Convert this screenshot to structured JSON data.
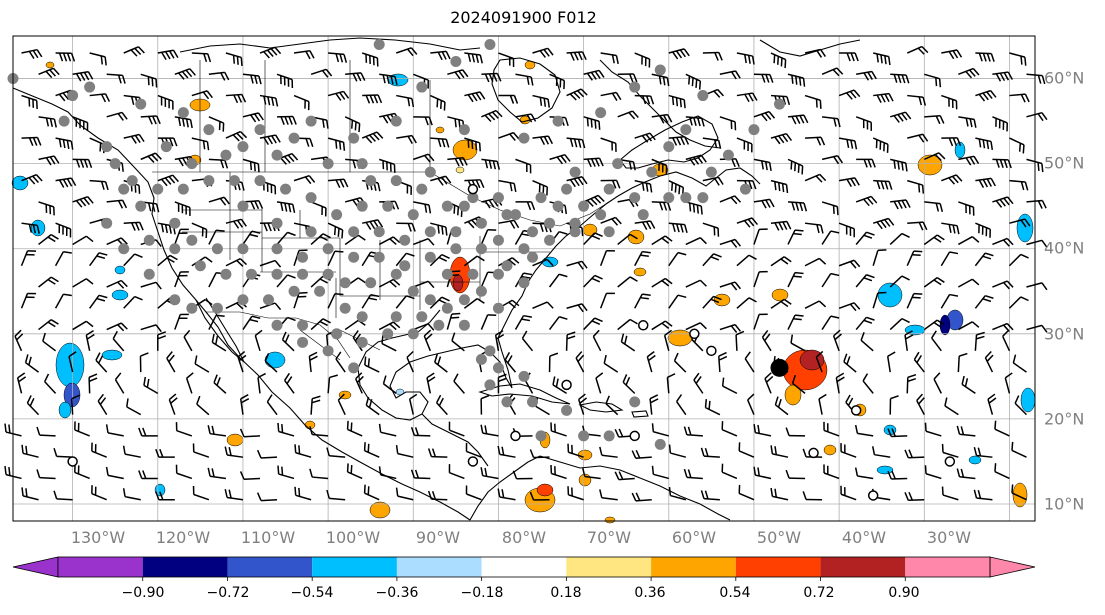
{
  "title": "2024091900 F012",
  "map": {
    "lon_labels": [
      "130°W",
      "120°W",
      "110°W",
      "100°W",
      "90°W",
      "80°W",
      "70°W",
      "60°W",
      "50°W",
      "40°W",
      "30°W"
    ],
    "lat_labels": [
      "60°N",
      "50°N",
      "40°N",
      "30°N",
      "20°N",
      "10°N"
    ],
    "extent": {
      "lon_min": -137,
      "lon_max": -17,
      "lat_min": 8,
      "lat_max": 65
    },
    "gridlines": true
  },
  "colorbar": {
    "tick_labels": [
      "−0.90",
      "−0.72",
      "−0.54",
      "−0.36",
      "−0.18",
      "0.18",
      "0.36",
      "0.54",
      "0.72",
      "0.90"
    ],
    "colors": [
      "#9933cc",
      "#000080",
      "#3355cc",
      "#00bfff",
      "#aaddff",
      "#ffffff",
      "#ffe680",
      "#ffa500",
      "#ff4000",
      "#b22222",
      "#ff88aa"
    ],
    "extend": "both"
  },
  "markers": {
    "large_black_dot": {
      "lon": -47,
      "lat": 26
    },
    "open_circles": [
      [
        -57,
        30
      ],
      [
        -55,
        28
      ],
      [
        -83,
        47
      ],
      [
        -72,
        24
      ],
      [
        -83,
        15
      ],
      [
        -78,
        18
      ],
      [
        -38,
        21
      ],
      [
        -43,
        16
      ],
      [
        -64,
        18
      ],
      [
        -130,
        15
      ],
      [
        -36,
        11
      ],
      [
        -27,
        15
      ],
      [
        -63,
        31
      ]
    ],
    "gray_dots": [
      [
        -137,
        60
      ],
      [
        -128,
        59
      ],
      [
        -122,
        57
      ],
      [
        -117,
        56
      ],
      [
        -114,
        54
      ],
      [
        -110,
        52
      ],
      [
        -106,
        51
      ],
      [
        -102,
        55
      ],
      [
        -97,
        53
      ],
      [
        -92,
        55
      ],
      [
        -89,
        59
      ],
      [
        -85,
        62
      ],
      [
        -81,
        64
      ],
      [
        -94,
        64
      ],
      [
        -77,
        53
      ],
      [
        -73,
        55
      ],
      [
        -68,
        56
      ],
      [
        -64,
        59
      ],
      [
        -61,
        61
      ],
      [
        -56,
        58
      ],
      [
        -60,
        52
      ],
      [
        -55,
        49
      ],
      [
        -51,
        47
      ],
      [
        -58,
        46
      ],
      [
        -63,
        44
      ],
      [
        -68,
        44
      ],
      [
        -71,
        42
      ],
      [
        -74,
        41
      ],
      [
        -77,
        40
      ],
      [
        -80,
        41
      ],
      [
        -82,
        43
      ],
      [
        -85,
        42
      ],
      [
        -88,
        42
      ],
      [
        -90,
        44
      ],
      [
        -93,
        45
      ],
      [
        -96,
        45
      ],
      [
        -99,
        44
      ],
      [
        -102,
        46
      ],
      [
        -105,
        47
      ],
      [
        -108,
        48
      ],
      [
        -111,
        48
      ],
      [
        -114,
        48
      ],
      [
        -117,
        47
      ],
      [
        -120,
        47
      ],
      [
        -123,
        48
      ],
      [
        -125,
        50
      ],
      [
        -122,
        45
      ],
      [
        -118,
        43
      ],
      [
        -116,
        41
      ],
      [
        -113,
        40
      ],
      [
        -110,
        40
      ],
      [
        -106,
        40
      ],
      [
        -103,
        39
      ],
      [
        -100,
        40
      ],
      [
        -97,
        39
      ],
      [
        -94,
        39
      ],
      [
        -91,
        38
      ],
      [
        -88,
        39
      ],
      [
        -85,
        40
      ],
      [
        -82,
        40
      ],
      [
        -79,
        38
      ],
      [
        -77,
        36
      ],
      [
        -80,
        33
      ],
      [
        -82,
        35
      ],
      [
        -84,
        34
      ],
      [
        -86,
        33
      ],
      [
        -88,
        34
      ],
      [
        -90,
        35
      ],
      [
        -92,
        37
      ],
      [
        -95,
        36
      ],
      [
        -98,
        36
      ],
      [
        -101,
        35
      ],
      [
        -104,
        35
      ],
      [
        -107,
        34
      ],
      [
        -110,
        34
      ],
      [
        -113,
        33
      ],
      [
        -116,
        33
      ],
      [
        -118,
        34
      ],
      [
        -121,
        37
      ],
      [
        -106,
        31
      ],
      [
        -103,
        31
      ],
      [
        -99,
        30
      ],
      [
        -96,
        29
      ],
      [
        -93,
        30
      ],
      [
        -90,
        30
      ],
      [
        -87,
        31
      ],
      [
        -84,
        31
      ],
      [
        -81,
        28
      ],
      [
        -82,
        27
      ],
      [
        -80,
        26
      ],
      [
        -97,
        26
      ],
      [
        -100,
        28
      ],
      [
        -103,
        29
      ],
      [
        -96,
        32
      ],
      [
        -92,
        32
      ],
      [
        -89,
        32
      ],
      [
        -86,
        37
      ],
      [
        -83,
        37
      ],
      [
        -80,
        37
      ],
      [
        -76,
        39
      ],
      [
        -74,
        43
      ],
      [
        -70,
        45
      ],
      [
        -67,
        47
      ],
      [
        -64,
        46
      ],
      [
        -72,
        47
      ],
      [
        -130,
        58
      ],
      [
        -131,
        55
      ],
      [
        -126,
        52
      ],
      [
        -119,
        52
      ],
      [
        -116,
        50
      ],
      [
        -112,
        51
      ],
      [
        -108,
        54
      ],
      [
        -104,
        53
      ],
      [
        -100,
        50
      ],
      [
        -96,
        50
      ],
      [
        -92,
        48
      ],
      [
        -89,
        47
      ],
      [
        -86,
        45
      ],
      [
        -83,
        46
      ],
      [
        -78,
        44
      ],
      [
        -75,
        46
      ],
      [
        -71,
        49
      ],
      [
        -66,
        50
      ],
      [
        -62,
        49
      ],
      [
        -58,
        54
      ],
      [
        -84,
        54
      ],
      [
        -88,
        49
      ],
      [
        -126,
        43
      ],
      [
        -124,
        40
      ],
      [
        -121,
        41
      ],
      [
        -118,
        40
      ],
      [
        -115,
        38
      ],
      [
        -112,
        37
      ],
      [
        -109,
        37
      ],
      [
        -106,
        37
      ],
      [
        -103,
        37
      ],
      [
        -100,
        37
      ],
      [
        -97,
        42
      ],
      [
        -94,
        42
      ],
      [
        -91,
        41
      ],
      [
        -84,
        45
      ],
      [
        -80,
        46
      ],
      [
        -76,
        42
      ],
      [
        -73,
        45
      ],
      [
        -71,
        43
      ],
      [
        -79,
        44
      ],
      [
        -67,
        42
      ],
      [
        -60,
        46
      ],
      [
        -56,
        46
      ],
      [
        -53,
        51
      ],
      [
        -50,
        54
      ],
      [
        -47,
        57
      ],
      [
        -95,
        48
      ],
      [
        -77,
        25
      ],
      [
        -75,
        18
      ],
      [
        -70,
        18
      ],
      [
        -72,
        21
      ],
      [
        -76,
        22
      ],
      [
        -79,
        22
      ],
      [
        -81,
        24
      ],
      [
        -61,
        17
      ],
      [
        -67,
        18
      ],
      [
        -64,
        22
      ],
      [
        -124,
        47
      ],
      [
        -110,
        45
      ],
      [
        -106,
        43
      ],
      [
        -102,
        42
      ],
      [
        -98,
        33
      ]
    ]
  }
}
